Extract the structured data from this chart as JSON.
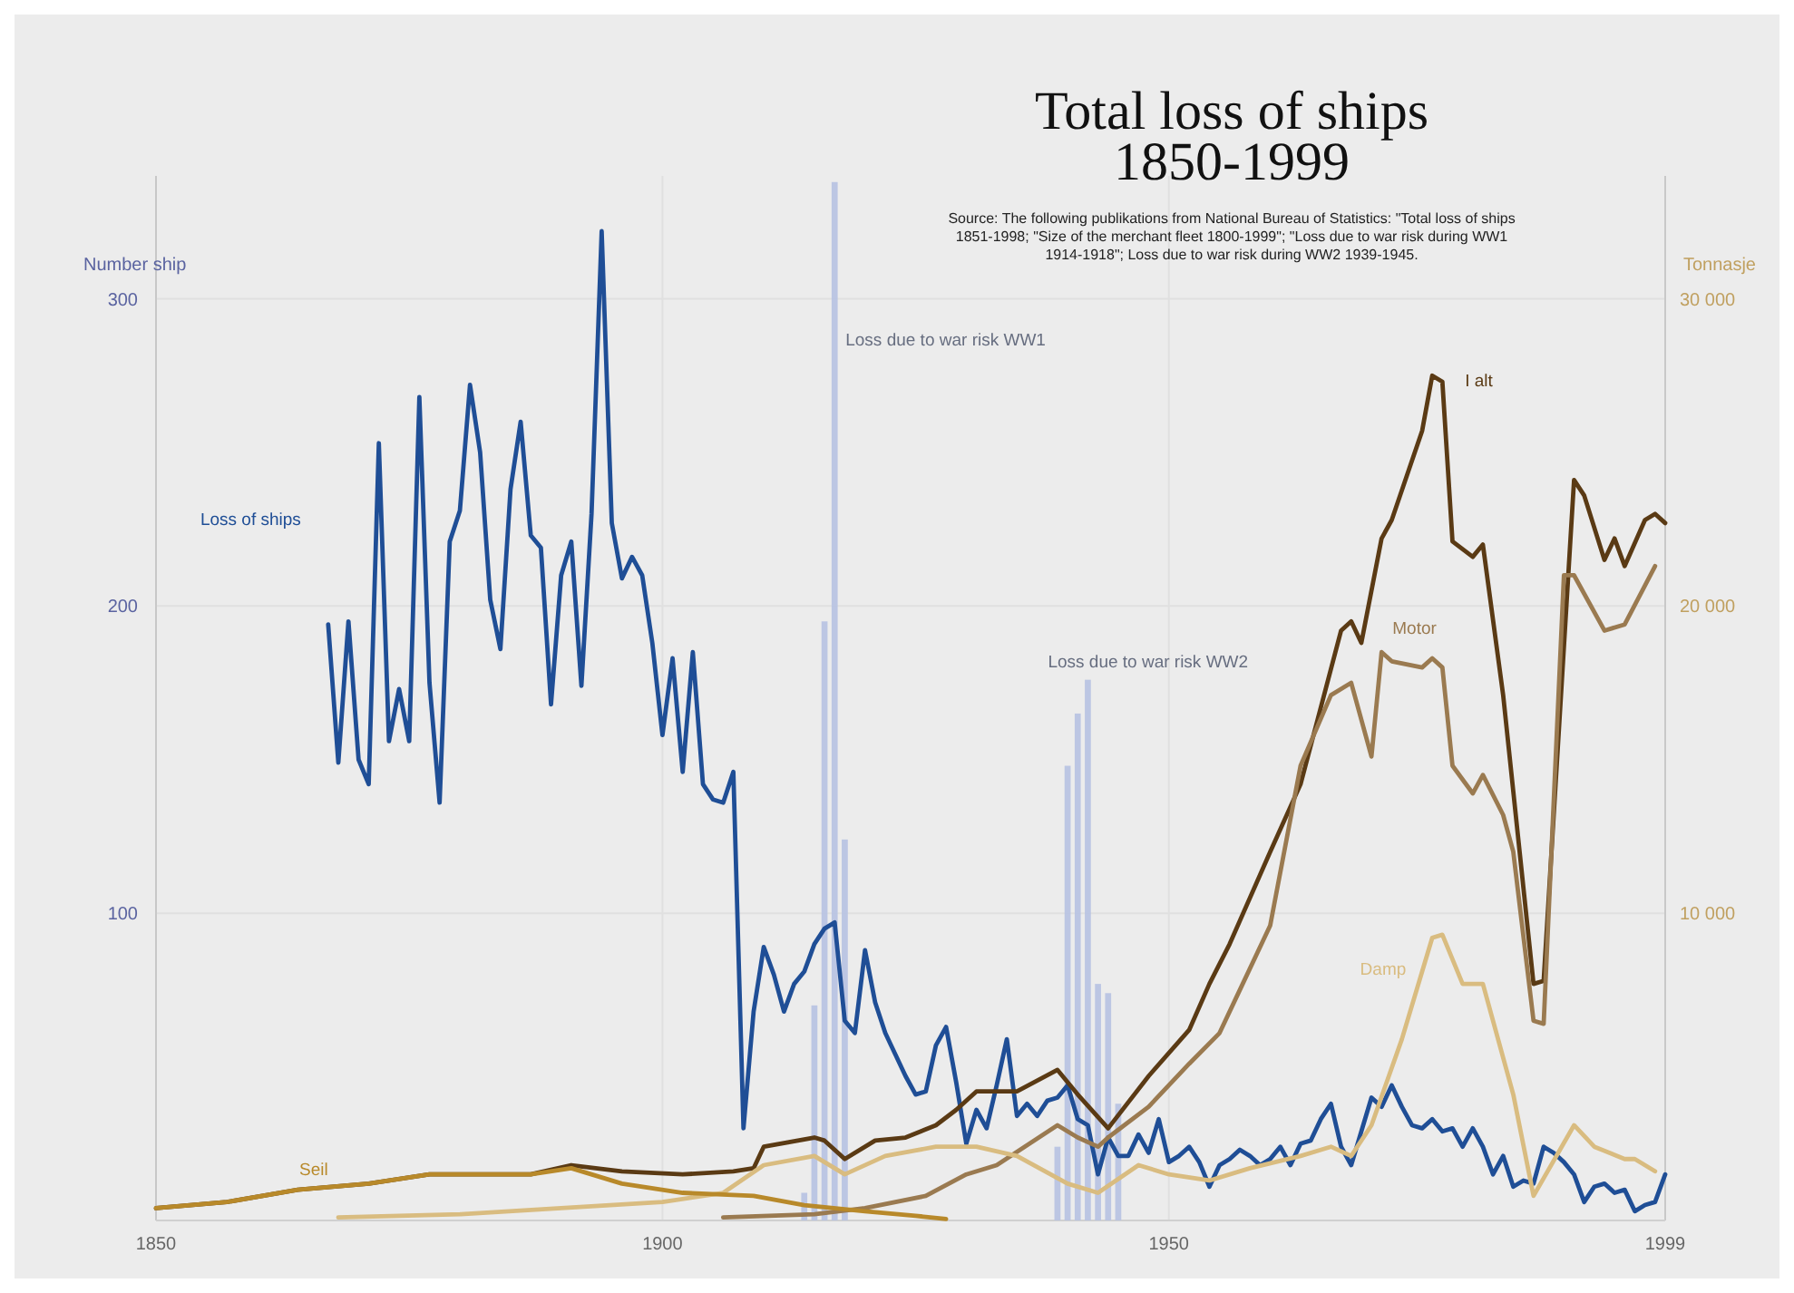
{
  "chart_data": {
    "type": "line",
    "title": "Total loss of ships\n1850-1999",
    "annotations": [
      "Source: The following publikations from National Bureau of Statistics:  \"Total loss of ships 1851-1998; \"Size of the merchant fleet 1800-1999\"; \"Loss due to war risk during WW1 1914-1918\"; Loss due to war risk during WW2 1939-1945."
    ],
    "ylabel": "Number ship",
    "y2label": "Tonnasje",
    "xlim": [
      1850,
      1999
    ],
    "xticks": [
      1850,
      1900,
      1950,
      1999
    ],
    "ylim": [
      0,
      340
    ],
    "yticks": [
      100,
      200,
      300
    ],
    "y2lim": [
      0,
      34000
    ],
    "y2ticks": [
      {
        "value": 10000,
        "label": "10 000"
      },
      {
        "value": 20000,
        "label": "20 000"
      },
      {
        "value": 30000,
        "label": "30 000"
      }
    ],
    "grid": true,
    "series": [
      {
        "name": "Loss of ships",
        "color": "#1f4e96",
        "x": [
          1867,
          1868,
          1869,
          1870,
          1871,
          1872,
          1873,
          1874,
          1875,
          1876,
          1877,
          1878,
          1879,
          1880,
          1881,
          1882,
          1883,
          1884,
          1885,
          1886,
          1887,
          1888,
          1889,
          1890,
          1891,
          1892,
          1893,
          1894,
          1895,
          1896,
          1897,
          1898,
          1899,
          1900,
          1901,
          1902,
          1903,
          1904,
          1905,
          1906,
          1907,
          1908,
          1909,
          1910,
          1911,
          1912,
          1913,
          1914,
          1915,
          1916,
          1917,
          1918,
          1919,
          1920,
          1921,
          1922,
          1923,
          1924,
          1925,
          1926,
          1927,
          1928,
          1929,
          1930,
          1931,
          1932,
          1933,
          1934,
          1935,
          1936,
          1937,
          1938,
          1939,
          1940,
          1941,
          1942,
          1943,
          1944,
          1945,
          1946,
          1947,
          1948,
          1949,
          1950,
          1951,
          1952,
          1953,
          1954,
          1955,
          1956,
          1957,
          1958,
          1959,
          1960,
          1961,
          1962,
          1963,
          1964,
          1965,
          1966,
          1967,
          1968,
          1969,
          1970,
          1971,
          1972,
          1973,
          1974,
          1975,
          1976,
          1977,
          1978,
          1979,
          1980,
          1981,
          1982,
          1983,
          1984,
          1985,
          1986,
          1987,
          1988,
          1989,
          1990,
          1991,
          1992,
          1993,
          1994,
          1995,
          1996,
          1997,
          1998,
          1999
        ],
        "values": [
          194,
          149,
          195,
          150,
          142,
          253,
          156,
          173,
          156,
          268,
          175,
          136,
          221,
          231,
          272,
          250,
          202,
          186,
          238,
          260,
          223,
          219,
          168,
          210,
          221,
          174,
          230,
          322,
          227,
          209,
          216,
          210,
          188,
          158,
          183,
          146,
          185,
          142,
          137,
          136,
          146,
          30,
          68,
          89,
          80,
          68,
          77,
          81,
          90,
          95,
          97,
          65,
          61,
          88,
          71,
          61,
          54,
          47,
          41,
          42,
          57,
          63,
          45,
          25,
          36,
          30,
          44,
          59,
          34,
          38,
          34,
          39,
          40,
          44,
          33,
          31,
          15,
          27,
          21,
          21,
          28,
          22,
          33,
          19,
          21,
          24,
          19,
          11,
          18,
          20,
          23,
          21,
          18,
          20,
          24,
          18,
          25,
          26,
          33,
          38,
          24,
          18,
          29,
          40,
          37,
          44,
          37,
          31,
          30,
          33,
          29,
          30,
          24,
          30,
          24,
          15,
          21,
          11,
          13,
          12,
          24,
          22,
          19,
          15,
          6,
          11,
          12,
          9,
          10,
          3,
          5,
          6,
          15
        ]
      },
      {
        "name": "Loss due to war risk WW1",
        "type": "bar",
        "color": "#b7c2e2",
        "x": [
          1914,
          1915,
          1916,
          1917,
          1918
        ],
        "values": [
          9,
          70,
          195,
          338,
          124
        ]
      },
      {
        "name": "Loss due to war risk WW2",
        "type": "bar",
        "color": "#b7c2e2",
        "x": [
          1939,
          1940,
          1941,
          1942,
          1943,
          1944,
          1945
        ],
        "values": [
          24,
          148,
          165,
          176,
          77,
          74,
          38
        ]
      },
      {
        "name": "I alt",
        "axis": "y2",
        "color": "#5a3a14",
        "x": [
          1850,
          1857,
          1864,
          1871,
          1877,
          1883,
          1887,
          1891,
          1896,
          1902,
          1907,
          1909,
          1910,
          1915,
          1916,
          1918,
          1921,
          1924,
          1927,
          1929,
          1931,
          1935,
          1939,
          1941,
          1944,
          1948,
          1952,
          1954,
          1956,
          1960,
          1963,
          1967,
          1968,
          1969,
          1971,
          1972,
          1975,
          1976,
          1977,
          1978,
          1980,
          1981,
          1983,
          1986,
          1987,
          1990,
          1991,
          1993,
          1994,
          1995,
          1997,
          1998,
          1999
        ],
        "values": [
          400,
          600,
          1000,
          1200,
          1500,
          1500,
          1500,
          1800,
          1600,
          1500,
          1600,
          1700,
          2400,
          2700,
          2600,
          2000,
          2600,
          2700,
          3100,
          3600,
          4200,
          4200,
          4900,
          4100,
          3000,
          4700,
          6200,
          7700,
          9000,
          12000,
          14200,
          19200,
          19500,
          18800,
          22200,
          22800,
          25700,
          27500,
          27300,
          22100,
          21600,
          22000,
          17100,
          7700,
          7800,
          24100,
          23600,
          21500,
          22200,
          21300,
          22800,
          23000,
          22700
        ]
      },
      {
        "name": "Motor",
        "axis": "y2",
        "color": "#9a7a50",
        "x": [
          1906,
          1915,
          1920,
          1926,
          1930,
          1933,
          1939,
          1941,
          1943,
          1944,
          1948,
          1952,
          1955,
          1957,
          1960,
          1963,
          1966,
          1968,
          1970,
          1971,
          1972,
          1975,
          1976,
          1977,
          1978,
          1980,
          1981,
          1983,
          1984,
          1986,
          1987,
          1989,
          1990,
          1993,
          1995,
          1998
        ],
        "values": [
          100,
          200,
          400,
          800,
          1500,
          1800,
          3100,
          2700,
          2400,
          2700,
          3700,
          5100,
          6100,
          7500,
          9600,
          14800,
          17100,
          17500,
          15100,
          18500,
          18200,
          18000,
          18300,
          18000,
          14800,
          13900,
          14500,
          13200,
          12000,
          6500,
          6400,
          21000,
          21000,
          19200,
          19400,
          21300
        ]
      },
      {
        "name": "Damp",
        "axis": "y2",
        "color": "#d9bc80",
        "x": [
          1868,
          1880,
          1890,
          1900,
          1906,
          1910,
          1915,
          1918,
          1922,
          1927,
          1931,
          1935,
          1940,
          1943,
          1947,
          1950,
          1954,
          1958,
          1963,
          1966,
          1968,
          1970,
          1973,
          1976,
          1977,
          1979,
          1981,
          1984,
          1986,
          1990,
          1992,
          1995,
          1996,
          1998
        ],
        "values": [
          100,
          200,
          400,
          600,
          900,
          1800,
          2100,
          1500,
          2100,
          2400,
          2400,
          2100,
          1200,
          900,
          1800,
          1500,
          1300,
          1700,
          2100,
          2400,
          2100,
          3100,
          5900,
          9200,
          9300,
          7700,
          7700,
          4100,
          800,
          3100,
          2400,
          2000,
          2000,
          1600
        ]
      },
      {
        "name": "Seil",
        "axis": "y2",
        "color": "#b8892a",
        "x": [
          1850,
          1857,
          1864,
          1871,
          1877,
          1883,
          1887,
          1891,
          1896,
          1902,
          1909,
          1914,
          1920,
          1925,
          1928
        ],
        "values": [
          400,
          600,
          1000,
          1200,
          1500,
          1500,
          1500,
          1700,
          1200,
          900,
          800,
          500,
          300,
          150,
          50
        ]
      }
    ]
  }
}
